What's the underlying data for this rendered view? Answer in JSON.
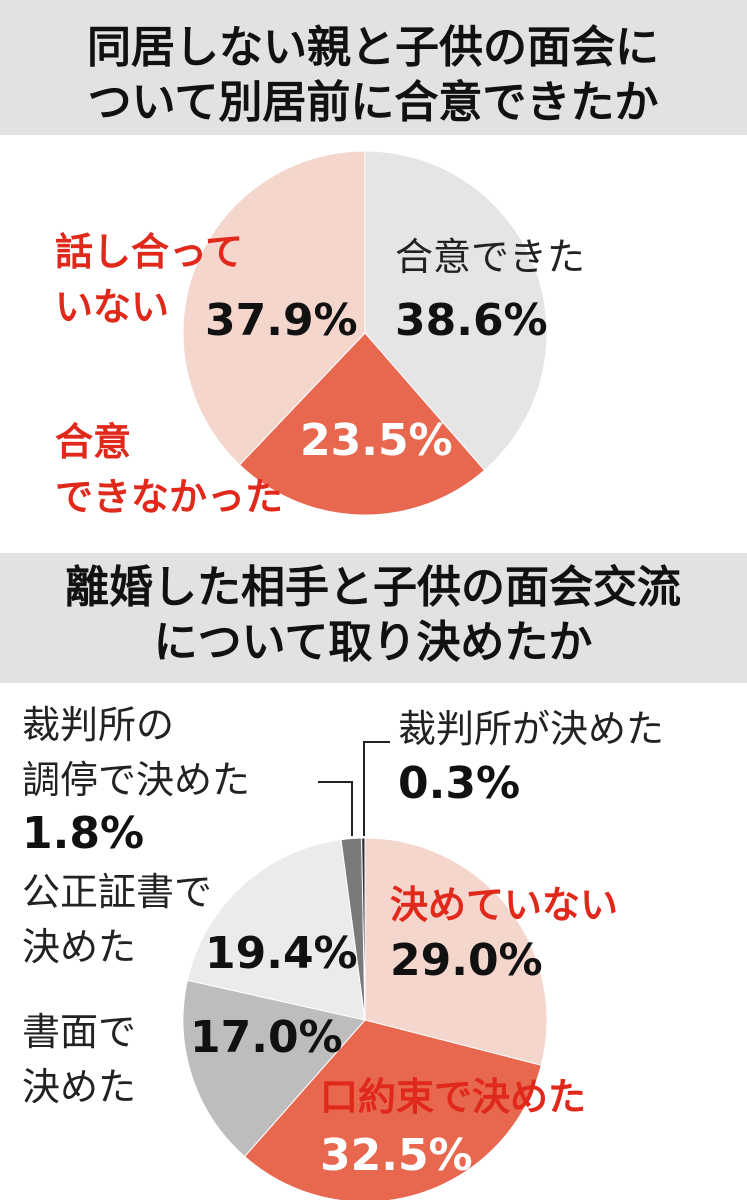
{
  "chart_data": [
    {
      "type": "pie",
      "title": "同居しない親と子供の面会に\nついて別居前に合意できたか",
      "categories": [
        "合意できた",
        "合意\nできなかった",
        "話し合って\nいない"
      ],
      "values": [
        38.6,
        23.5,
        37.9
      ],
      "value_labels": [
        "38.6%",
        "23.5%",
        "37.9%"
      ],
      "colors": [
        "#e5e5e5",
        "#e8674f",
        "#f4d6cd"
      ]
    },
    {
      "type": "pie",
      "title": "離婚した相手と子供の面会交流\nについて取り決めたか",
      "categories": [
        "決めていない",
        "口約束で決めた",
        "書面で\n決めた",
        "公正証書で\n決めた",
        "裁判所の\n調停で決めた",
        "裁判所が決めた"
      ],
      "values": [
        29.0,
        32.5,
        17.0,
        19.4,
        1.8,
        0.3
      ],
      "value_labels": [
        "29.0%",
        "32.5%",
        "17.0%",
        "19.4%",
        "1.8%",
        "0.3%"
      ],
      "colors": [
        "#f4d6cd",
        "#e8674f",
        "#bdbdbd",
        "#ebebeb",
        "#7a7a7a",
        "#333333"
      ]
    }
  ]
}
